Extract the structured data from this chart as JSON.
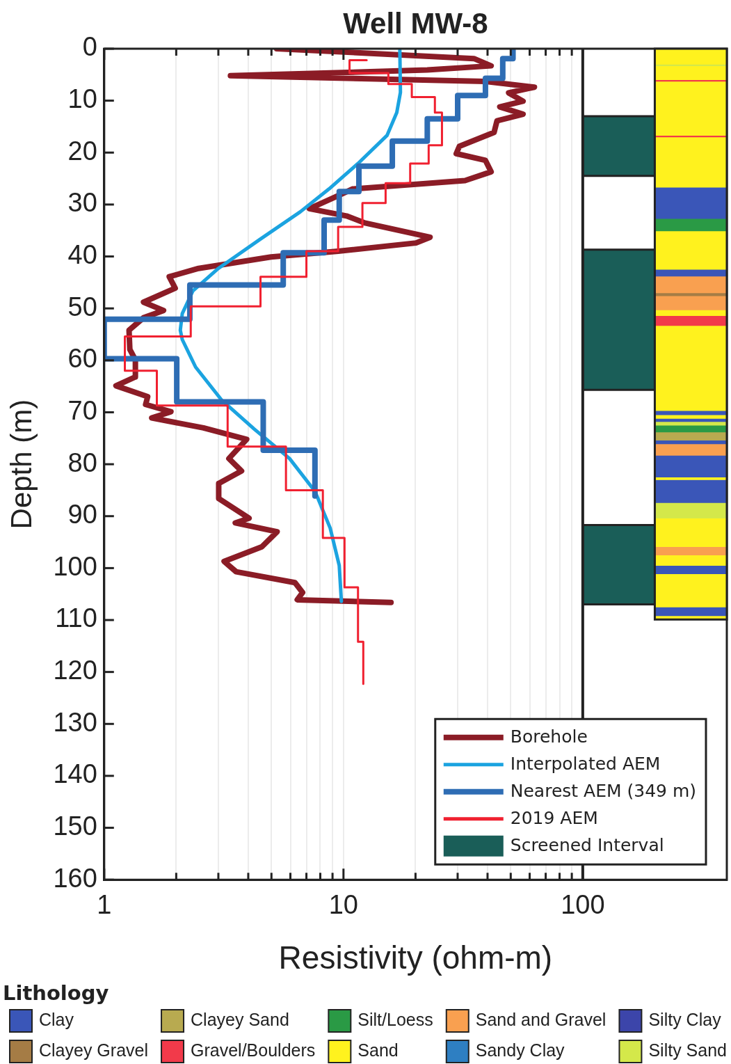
{
  "chart_data": [
    {
      "type": "line",
      "title": "Well MW-8",
      "xlabel": "Resistivity (ohm-m)",
      "ylabel": "Depth (m)",
      "log": "x",
      "xlim": [
        1,
        400
      ],
      "xticks": [
        1,
        {
          "value": 2,
          "label": null
        },
        {
          "value": 3,
          "label": null
        },
        {
          "value": 4,
          "label": null
        },
        {
          "value": 5,
          "label": null
        },
        {
          "value": 6,
          "label": null
        },
        {
          "value": 7,
          "label": null
        },
        {
          "value": 8,
          "label": null
        },
        {
          "value": 9,
          "label": null
        },
        10,
        {
          "value": 20,
          "label": null
        },
        {
          "value": 30,
          "label": null
        },
        {
          "value": 40,
          "label": null
        },
        {
          "value": 50,
          "label": null
        },
        {
          "value": 60,
          "label": null
        },
        {
          "value": 70,
          "label": null
        },
        {
          "value": 80,
          "label": null
        },
        {
          "value": 90,
          "label": null
        },
        100
      ],
      "ylim": [
        160,
        0
      ],
      "yticks": [
        0,
        10,
        20,
        30,
        40,
        50,
        60,
        70,
        80,
        90,
        100,
        110,
        120,
        130,
        140,
        150,
        160
      ],
      "grid": "x",
      "legend": "bottom right",
      "marker": "none",
      "ref_lines": [
        {
          "axis": "x",
          "value": 100,
          "color": "#222222"
        }
      ],
      "bands": [
        {
          "axis": "y",
          "from": 13,
          "to": 24.5,
          "color": "#1a5e58",
          "label": "Screened Interval"
        },
        {
          "axis": "y",
          "from": 38.7,
          "to": 65.7,
          "color": "#1a5e58"
        },
        {
          "axis": "y",
          "from": 91.7,
          "to": 107,
          "color": "#1a5e58"
        }
      ],
      "series": [
        {
          "name": "Borehole",
          "color": "#8b1c26",
          "x": [
            5.26,
            35.1,
            41.4,
            22.4,
            3.37,
            39.2,
            62.8,
            49.0,
            56.3,
            45.0,
            56.3,
            43.8,
            42.6,
            30.5,
            29.6,
            39.2,
            41.4,
            32.2,
            10.9,
            9.2,
            7.2,
            10.3,
            12.2,
            23.0,
            20.1,
            9.5,
            4.98,
            2.48,
            1.87,
            1.98,
            1.46,
            1.77,
            1.46,
            1.27,
            1.28,
            1.35,
            1.35,
            1.12,
            1.52,
            1.49,
            1.9,
            1.58,
            2.6,
            3.94,
            3.32,
            3.75,
            3.01,
            3.01,
            4.03,
            3.53,
            5.28,
            4.56,
            3.17,
            3.56,
            6.27,
            6.75,
            6.41,
            15.8
          ],
          "values": [
            0,
            1.9,
            3.3,
            4.1,
            5.2,
            6.3,
            7.4,
            8.5,
            10.1,
            11.2,
            12.6,
            13.9,
            16.1,
            18.8,
            20.2,
            21.5,
            23.7,
            25.4,
            27.0,
            28.6,
            30.8,
            32.2,
            33.5,
            36.3,
            37.4,
            39.0,
            40.1,
            42.3,
            43.9,
            46.1,
            48.8,
            50.4,
            51.8,
            54.2,
            57.9,
            59.9,
            63.2,
            64.9,
            67.0,
            68.5,
            69.9,
            71.1,
            73.0,
            75.2,
            78.9,
            81.3,
            83.7,
            86.6,
            90.4,
            91.3,
            93.0,
            95.9,
            98.7,
            100.7,
            102.8,
            104.7,
            106.1,
            106.6
          ]
        },
        {
          "name": "Interpolated AEM",
          "color": "#1ba3e0",
          "x": [
            17.2,
            17.3,
            16.7,
            15.2,
            11.5,
            8.7,
            6.6,
            4.45,
            3.0,
            2.35,
            2.12,
            2.08,
            2.12,
            2.41,
            3.09,
            4.23,
            5.95,
            7.6,
            8.8,
            9.6,
            9.8
          ],
          "values": [
            0.3,
            8.4,
            12.3,
            16.7,
            22.1,
            27.0,
            31.4,
            36.8,
            42.3,
            46.6,
            51.0,
            54.2,
            56.0,
            61.3,
            67.6,
            73.2,
            78.9,
            85.2,
            92.3,
            99.5,
            106.4
          ]
        },
        {
          "name": "Nearest AEM (349 m)",
          "color": "#2e6db4",
          "x": [
            51.1,
            51.1,
            46.3,
            46.3,
            39.2,
            39.2,
            30.0,
            30.0,
            22.4,
            22.4,
            16.0,
            16.0,
            11.6,
            11.6,
            9.6,
            9.6,
            8.3,
            8.3,
            5.6,
            5.6,
            2.28,
            2.28,
            1.0,
            1.0,
            2.01,
            2.01,
            4.62,
            4.62,
            7.6,
            7.6
          ],
          "values": [
            0,
            1.9,
            1.9,
            5.7,
            5.7,
            9.0,
            9.0,
            13.5,
            13.5,
            17.8,
            17.8,
            22.6,
            22.6,
            27.5,
            27.5,
            33.0,
            33.0,
            39.3,
            39.3,
            45.5,
            45.5,
            52.1,
            52.1,
            59.7,
            59.7,
            68.0,
            68.0,
            77.3,
            77.3,
            86.1
          ]
        },
        {
          "name": "2019 AEM",
          "color": "#f02030",
          "x": [
            12.5,
            10.6,
            10.6,
            15.4,
            15.4,
            19.3,
            19.3,
            24.1,
            24.1,
            25.8,
            25.8,
            22.7,
            22.7,
            19.0,
            19.0,
            15.0,
            15.0,
            12.0,
            12.0,
            9.5,
            9.5,
            7.0,
            7.0,
            4.5,
            4.5,
            2.3,
            2.3,
            1.22,
            1.22,
            1.66,
            1.66,
            3.28,
            3.28,
            5.75,
            5.75,
            8.2,
            8.2,
            10.1,
            10.1,
            11.5,
            11.5,
            12.1,
            12.1
          ],
          "values": [
            2.2,
            2.2,
            4.7,
            4.7,
            6.8,
            6.8,
            9.3,
            9.3,
            12.3,
            12.3,
            18.6,
            18.6,
            22.1,
            22.1,
            25.9,
            25.9,
            29.7,
            29.7,
            34.3,
            34.3,
            39.0,
            39.0,
            43.9,
            43.9,
            49.6,
            49.6,
            55.4,
            55.4,
            62.0,
            62.0,
            68.7,
            68.7,
            76.6,
            76.6,
            85.0,
            85.0,
            94.2,
            94.2,
            103.7,
            103.7,
            114.2,
            114.2,
            122.3
          ]
        }
      ]
    },
    {
      "type": "bar",
      "stacked": true,
      "categories": [
        null
      ],
      "ylim": [
        160,
        0
      ],
      "tick_labels": false,
      "legend": "bottom",
      "legend_title": "Lithology",
      "series": [
        {
          "name": "Clay",
          "color": "#3a56b8",
          "values": [
            null
          ]
        },
        {
          "name": "Clayey Gravel",
          "color": "#a57c45",
          "values": [
            null
          ]
        },
        {
          "name": "Clayey Sand",
          "color": "#b8aa50",
          "values": [
            null
          ]
        },
        {
          "name": "Gravel/Boulders",
          "color": "#f23a4a",
          "values": [
            null
          ]
        },
        {
          "name": "Silt/Loess",
          "color": "#2a9a45",
          "values": [
            null
          ]
        },
        {
          "name": "Sand",
          "color": "#fff21e",
          "values": [
            null
          ]
        },
        {
          "name": "Sand and Gravel",
          "color": "#f9a050",
          "values": [
            null
          ]
        },
        {
          "name": "Sandy Clay",
          "color": "#2e7fc2",
          "values": [
            null
          ]
        },
        {
          "name": "Silty Clay",
          "color": "#3c45aa",
          "values": [
            null
          ]
        },
        {
          "name": "Silty Sand",
          "color": "#d4e84a",
          "values": [
            null
          ]
        },
        {
          "color": "#fff21e",
          "values": [
            3.0
          ]
        },
        {
          "color": "#d4e84a",
          "values": [
            0.3
          ]
        },
        {
          "color": "#fff21e",
          "values": [
            2.7
          ]
        },
        {
          "color": "#f23a4a",
          "values": [
            0.3
          ]
        },
        {
          "color": "#fff21e",
          "values": [
            10.4
          ]
        },
        {
          "color": "#f23a4a",
          "values": [
            0.3
          ]
        },
        {
          "color": "#fff21e",
          "values": [
            9.7
          ]
        },
        {
          "color": "#3a56b8",
          "values": [
            6.0
          ]
        },
        {
          "color": "#2a9a45",
          "values": [
            2.4
          ]
        },
        {
          "color": "#fff21e",
          "values": [
            7.4
          ]
        },
        {
          "color": "#3a56b8",
          "values": [
            1.3
          ]
        },
        {
          "color": "#f9a050",
          "values": [
            3.2
          ]
        },
        {
          "color": "#a57c45",
          "values": [
            0.6
          ]
        },
        {
          "color": "#f9a050",
          "values": [
            2.7
          ]
        },
        {
          "color": "#fff21e",
          "values": [
            1.1
          ]
        },
        {
          "color": "#f23a4a",
          "values": [
            1.9
          ]
        },
        {
          "color": "#fff21e",
          "values": [
            16.4
          ]
        },
        {
          "color": "#3a56b8",
          "values": [
            0.8
          ]
        },
        {
          "color": "#fff21e",
          "values": [
            0.7
          ]
        },
        {
          "color": "#3a56b8",
          "values": [
            0.6
          ]
        },
        {
          "color": "#d4e84a",
          "values": [
            0.7
          ]
        },
        {
          "color": "#2a9a45",
          "values": [
            1.3
          ]
        },
        {
          "color": "#b8aa50",
          "values": [
            1.6
          ]
        },
        {
          "color": "#3a56b8",
          "values": [
            0.7
          ]
        },
        {
          "color": "#f9a050",
          "values": [
            2.2
          ]
        },
        {
          "color": "#3a56b8",
          "values": [
            4.2
          ]
        },
        {
          "color": "#fff21e",
          "values": [
            0.5
          ]
        },
        {
          "color": "#3a56b8",
          "values": [
            4.4
          ]
        },
        {
          "color": "#d4e84a",
          "values": [
            3.0
          ]
        },
        {
          "color": "#fff21e",
          "values": [
            5.5
          ]
        },
        {
          "color": "#f9a050",
          "values": [
            1.6
          ]
        },
        {
          "color": "#fff21e",
          "values": [
            2.0
          ]
        },
        {
          "color": "#3a56b8",
          "values": [
            1.6
          ]
        },
        {
          "color": "#fff21e",
          "values": [
            6.4
          ]
        },
        {
          "color": "#3a56b8",
          "values": [
            1.7
          ]
        },
        {
          "color": "#fff21e",
          "values": [
            0.7
          ]
        }
      ]
    }
  ]
}
